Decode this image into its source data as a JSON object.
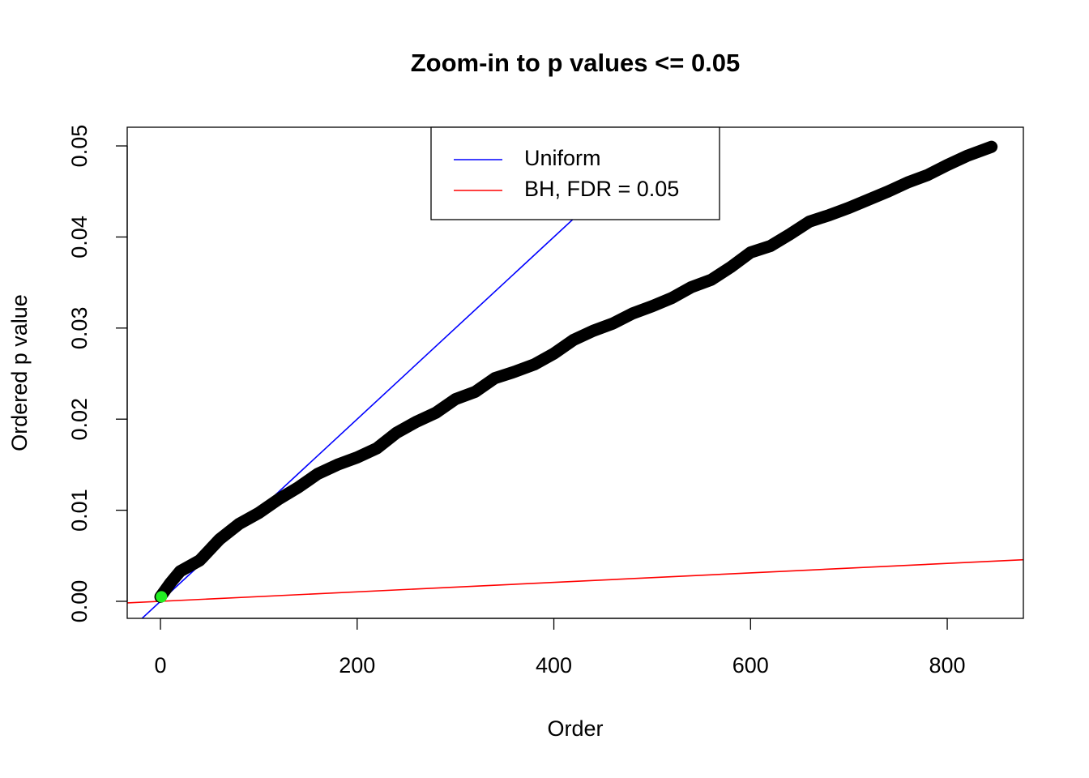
{
  "chart_data": {
    "type": "scatter",
    "title": "Zoom-in to p values <= 0.05",
    "x_label": "Order",
    "y_label": "Ordered p value",
    "xlim": [
      -33.8,
      877.4
    ],
    "ylim": [
      -0.00187,
      0.05205
    ],
    "xticks": [
      0,
      200,
      400,
      600,
      800
    ],
    "yticks": [
      {
        "value": 0,
        "label": "0.00"
      },
      {
        "value": 0.01,
        "label": "0.01"
      },
      {
        "value": 0.02,
        "label": "0.02"
      },
      {
        "value": 0.03,
        "label": "0.03"
      },
      {
        "value": 0.04,
        "label": "0.04"
      },
      {
        "value": 0.05,
        "label": "0.05"
      }
    ],
    "series": [
      {
        "color": "#000000",
        "x": [
          0,
          10,
          20,
          40,
          60,
          80,
          100,
          120,
          140,
          160,
          180,
          200,
          220,
          240,
          260,
          280,
          300,
          320,
          340,
          360,
          380,
          400,
          420,
          440,
          460,
          480,
          500,
          520,
          540,
          560,
          580,
          600,
          620,
          640,
          660,
          680,
          700,
          720,
          740,
          760,
          780,
          800,
          820,
          845
        ],
        "values": [
          0.0005,
          0.002,
          0.0033,
          0.0045,
          0.0068,
          0.0085,
          0.0097,
          0.0112,
          0.0125,
          0.014,
          0.015,
          0.0158,
          0.0168,
          0.0185,
          0.0197,
          0.0207,
          0.0222,
          0.023,
          0.0245,
          0.0252,
          0.026,
          0.0272,
          0.0287,
          0.0297,
          0.0305,
          0.0316,
          0.0324,
          0.0333,
          0.0345,
          0.0353,
          0.0367,
          0.0383,
          0.039,
          0.0403,
          0.0417,
          0.0424,
          0.0432,
          0.0441,
          0.045,
          0.046,
          0.0468,
          0.0479,
          0.0489,
          0.0499
        ]
      },
      {
        "color": "#22ee22",
        "x": [
          1
        ],
        "values": [
          0.0005
        ]
      }
    ],
    "lines": [
      {
        "name": "Uniform",
        "color": "#0000ff",
        "intercept": 0,
        "slope": 0.0001
      },
      {
        "name": "BH, FDR = 0.05",
        "color": "#ff0000",
        "intercept": 0,
        "slope": 5.2e-06
      }
    ],
    "legend": "top"
  }
}
